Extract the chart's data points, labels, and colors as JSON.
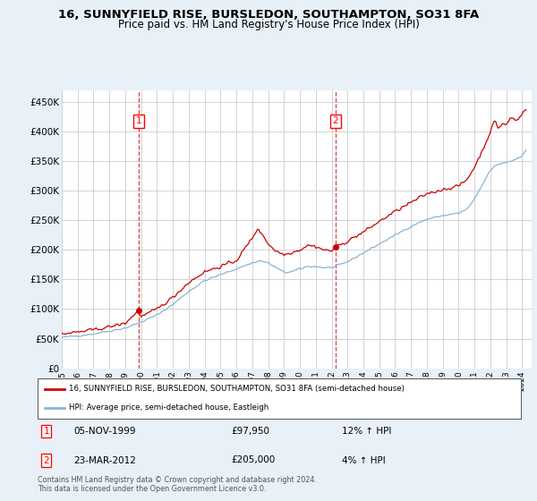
{
  "title": "16, SUNNYFIELD RISE, BURSLEDON, SOUTHAMPTON, SO31 8FA",
  "subtitle": "Price paid vs. HM Land Registry's House Price Index (HPI)",
  "background_color": "#e8f0f8",
  "plot_bg_color": "#ffffff",
  "legend_line1": "16, SUNNYFIELD RISE, BURSLEDON, SOUTHAMPTON, SO31 8FA (semi-detached house)",
  "legend_line2": "HPI: Average price, semi-detached house, Eastleigh",
  "footnote": "Contains HM Land Registry data © Crown copyright and database right 2024.\nThis data is licensed under the Open Government Licence v3.0.",
  "sale1_date": "05-NOV-1999",
  "sale1_price": "£97,950",
  "sale1_hpi": "12% ↑ HPI",
  "sale2_date": "23-MAR-2012",
  "sale2_price": "£205,000",
  "sale2_hpi": "4% ↑ HPI",
  "sale1_year": 1999.85,
  "sale2_year": 2012.23,
  "sale1_price_val": 97950,
  "sale2_price_val": 205000,
  "hpi_color": "#8ab4d4",
  "property_color": "#cc0000",
  "dashed_color": "#cc0000",
  "ylim": [
    0,
    470000
  ],
  "xlim_start": 1995,
  "xlim_end": 2024.6
}
